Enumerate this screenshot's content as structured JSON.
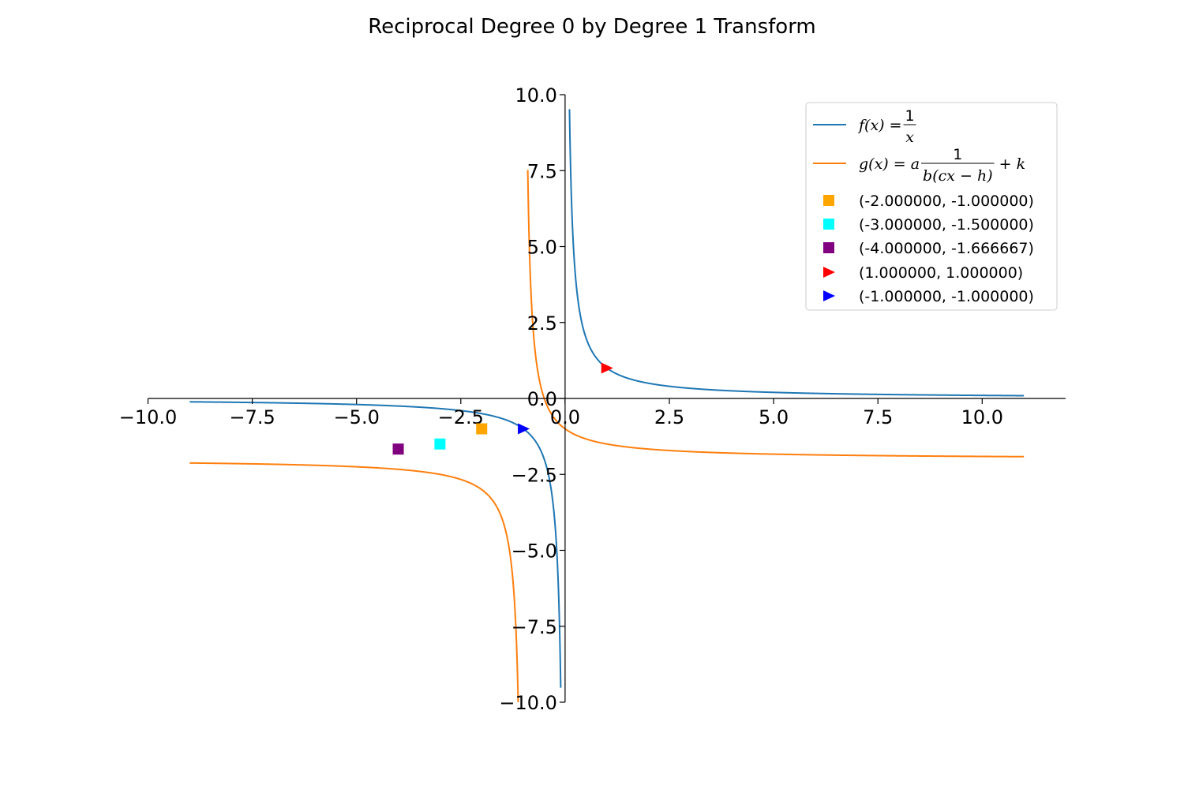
{
  "chart_data": {
    "type": "line",
    "title": "Reciprocal Degree 0 by Degree 1 Transform",
    "xlim": [
      -10,
      12
    ],
    "ylim": [
      -10,
      10
    ],
    "x_ticks": [
      "−10.0",
      "−7.5",
      "−5.0",
      "−2.5",
      "0.0",
      "2.5",
      "5.0",
      "7.5",
      "10.0"
    ],
    "x_tick_values": [
      -10,
      -7.5,
      -5,
      -2.5,
      0,
      2.5,
      5,
      7.5,
      10
    ],
    "y_ticks": [
      "−10.0",
      "−7.5",
      "−5.0",
      "−2.5",
      "0.0",
      "2.5",
      "5.0",
      "7.5",
      "10.0"
    ],
    "y_tick_values": [
      -10,
      -7.5,
      -5,
      -2.5,
      0,
      2.5,
      5,
      7.5,
      10
    ],
    "grid": false,
    "legend_position": "top-right",
    "series": [
      {
        "name": "f(x) = 1/x",
        "legend": {
          "lhs": "f(x) = ",
          "num": "1",
          "den": "x"
        },
        "color": "#1f77b4",
        "function": "1/x",
        "domain": [
          -9,
          11
        ]
      },
      {
        "name": "g(x) = a 1/(b(cx − h)) + k",
        "legend": {
          "lhs": "g(x) = a",
          "num": "1",
          "den": "b(cx − h)",
          "rhs": "+ k"
        },
        "color": "#ff7f0e",
        "function": "1/(x+1) - 2",
        "domain": [
          -9,
          11
        ]
      }
    ],
    "points": [
      {
        "label": "(-2.000000, -1.000000)",
        "x": -2,
        "y": -1,
        "color": "#ffa500",
        "marker": "square"
      },
      {
        "label": "(-3.000000, -1.500000)",
        "x": -3,
        "y": -1.5,
        "color": "#00ffff",
        "marker": "square"
      },
      {
        "label": "(-4.000000, -1.666667)",
        "x": -4,
        "y": -1.666667,
        "color": "#800080",
        "marker": "square"
      },
      {
        "label": "(1.000000, 1.000000)",
        "x": 1,
        "y": 1,
        "color": "#ff0000",
        "marker": "triangle-right"
      },
      {
        "label": "(-1.000000, -1.000000)",
        "x": -1,
        "y": -1,
        "color": "#0000ff",
        "marker": "triangle-right"
      }
    ]
  }
}
